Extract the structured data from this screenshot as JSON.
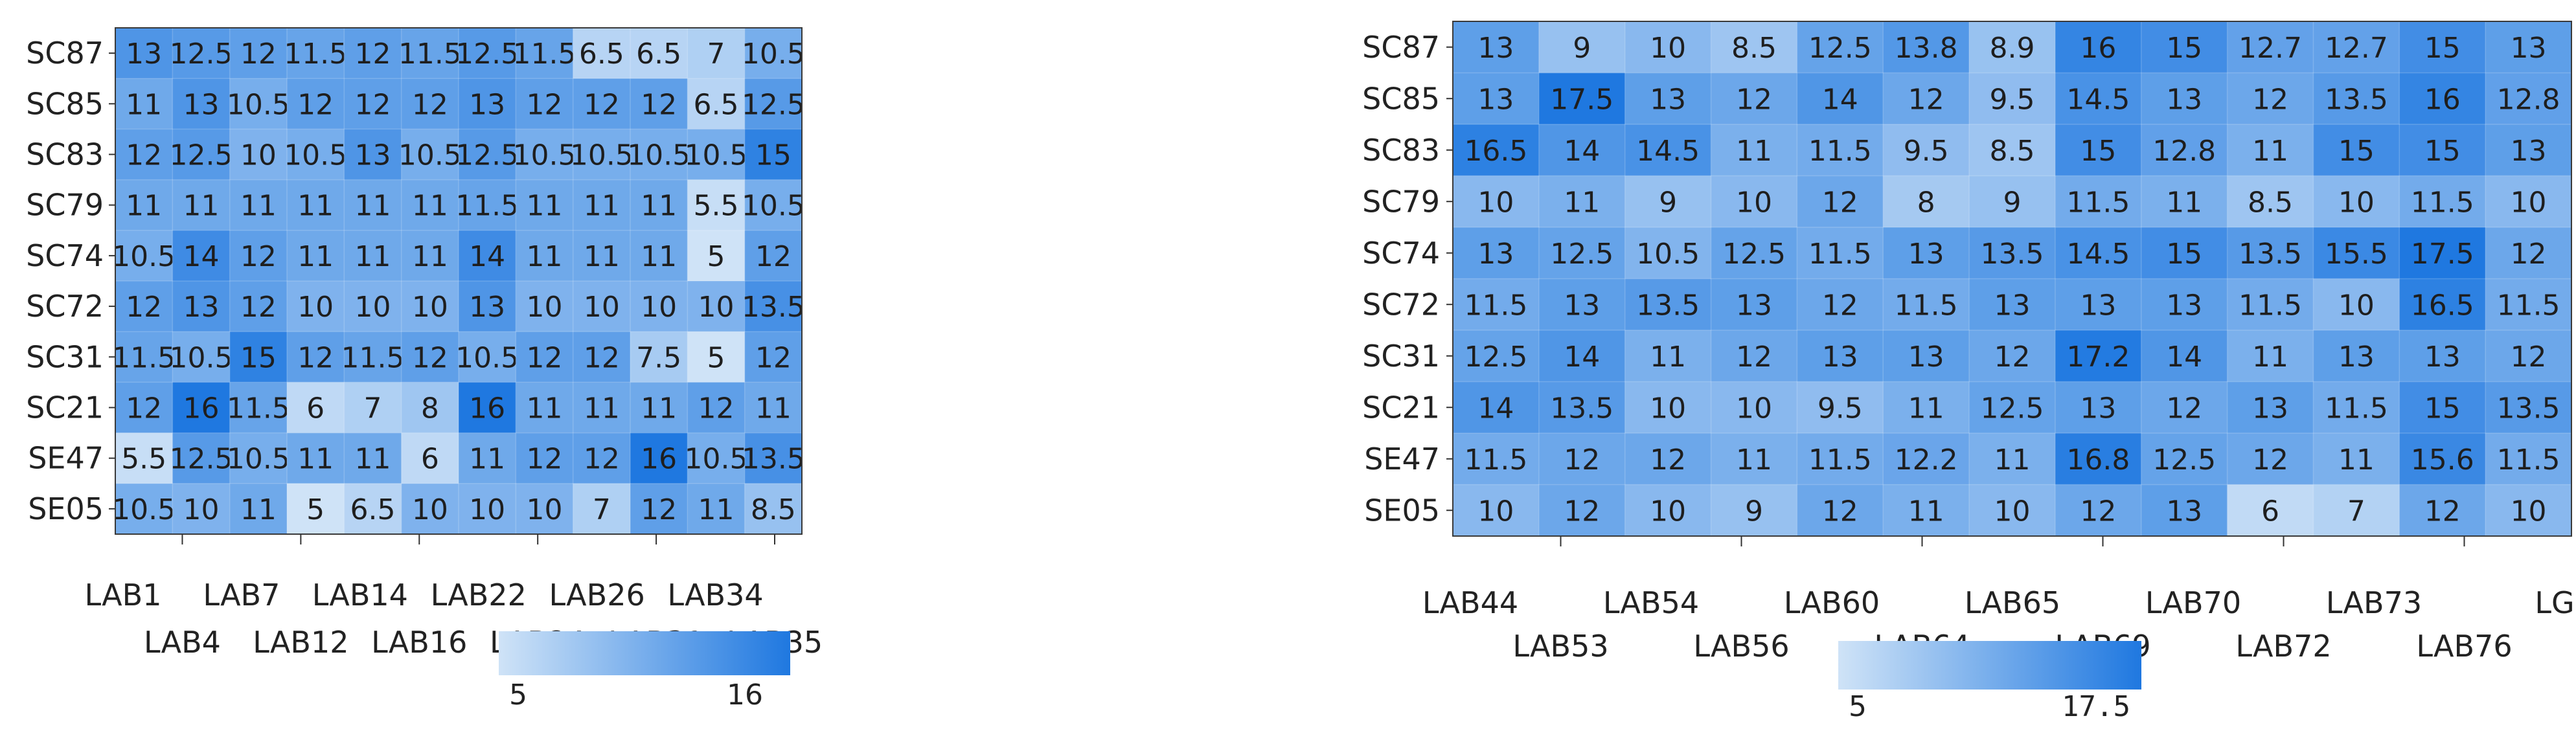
{
  "chart_data": [
    {
      "type": "heatmap",
      "rows": [
        "SC87",
        "SC85",
        "SC83",
        "SC79",
        "SC74",
        "SC72",
        "SC31",
        "SC21",
        "SE47",
        "SE05"
      ],
      "columns": [
        "LAB1",
        "LAB4",
        "LAB7",
        "LAB12",
        "LAB14",
        "LAB16",
        "LAB22",
        "LAB24",
        "LAB26",
        "LAB31",
        "LAB34",
        "LAB35"
      ],
      "values": [
        [
          13,
          12.5,
          12,
          11.5,
          12,
          11.5,
          12.5,
          11.5,
          6.5,
          6.5,
          7,
          10.5
        ],
        [
          11,
          13,
          10.5,
          12,
          12,
          12,
          13,
          12,
          12,
          12,
          6.5,
          12.5
        ],
        [
          12,
          12.5,
          10,
          10.5,
          13,
          10.5,
          12.5,
          10.5,
          10.5,
          10.5,
          10.5,
          15
        ],
        [
          11,
          11,
          11,
          11,
          11,
          11,
          11.5,
          11,
          11,
          11,
          5.5,
          10.5
        ],
        [
          10.5,
          14,
          12,
          11,
          11,
          11,
          14,
          11,
          11,
          11,
          5,
          12
        ],
        [
          12,
          13,
          12,
          10,
          10,
          10,
          13,
          10,
          10,
          10,
          10,
          13.5
        ],
        [
          11.5,
          10.5,
          15,
          12,
          11.5,
          12,
          10.5,
          12,
          12,
          7.5,
          5,
          12
        ],
        [
          12,
          16,
          11.5,
          6,
          7,
          8,
          16,
          11,
          11,
          11,
          12,
          11
        ],
        [
          5.5,
          12.5,
          10.5,
          11,
          11,
          6,
          11,
          12,
          12,
          16,
          10.5,
          13.5
        ],
        [
          10.5,
          10,
          11,
          5,
          6.5,
          10,
          10,
          10,
          7,
          12,
          11,
          8.5
        ]
      ],
      "colorbar": {
        "min": 5,
        "max": 16,
        "min_label": "5",
        "max_label": "16",
        "low_color": "#cfe3f7",
        "high_color": "#1f78e0"
      }
    },
    {
      "type": "heatmap",
      "rows": [
        "SC87",
        "SC85",
        "SC83",
        "SC79",
        "SC74",
        "SC72",
        "SC31",
        "SC21",
        "SE47",
        "SE05"
      ],
      "columns": [
        "LAB44",
        "LAB53",
        "LAB54",
        "LAB56",
        "LAB60",
        "LAB64",
        "LAB65",
        "LAB69",
        "LAB70",
        "LAB72",
        "LAB73",
        "LAB76",
        "LG"
      ],
      "values": [
        [
          13,
          9,
          10,
          8.5,
          12.5,
          13.8,
          8.9,
          16,
          15,
          12.7,
          12.7,
          15,
          13
        ],
        [
          13,
          17.5,
          13,
          12,
          14,
          12,
          9.5,
          14.5,
          13,
          12,
          13.5,
          16,
          12.8
        ],
        [
          16.5,
          14,
          14.5,
          11,
          11.5,
          9.5,
          8.5,
          15,
          12.8,
          11,
          15,
          15,
          13
        ],
        [
          10,
          11,
          9,
          10,
          12,
          8,
          9,
          11.5,
          11,
          8.5,
          10,
          11.5,
          10
        ],
        [
          13,
          12.5,
          10.5,
          12.5,
          11.5,
          13,
          13.5,
          14.5,
          15,
          13.5,
          15.5,
          17.5,
          12
        ],
        [
          11.5,
          13,
          13.5,
          13,
          12,
          11.5,
          13,
          13,
          13,
          11.5,
          10,
          16.5,
          11.5
        ],
        [
          12.5,
          14,
          11,
          12,
          13,
          13,
          12,
          17.2,
          14,
          11,
          13,
          13,
          12
        ],
        [
          14,
          13.5,
          10,
          10,
          9.5,
          11,
          12.5,
          13,
          12,
          13,
          11.5,
          15,
          13.5
        ],
        [
          11.5,
          12,
          12,
          11,
          11.5,
          12.2,
          11,
          16.8,
          12.5,
          12,
          11,
          15.6,
          11.5
        ],
        [
          10,
          12,
          10,
          9,
          12,
          11,
          10,
          12,
          13,
          6,
          7,
          12,
          10
        ]
      ],
      "colorbar": {
        "min": 5,
        "max": 17.5,
        "min_label": "5",
        "max_label": "17.5",
        "low_color": "#cfe3f7",
        "high_color": "#1f78e0"
      }
    }
  ]
}
